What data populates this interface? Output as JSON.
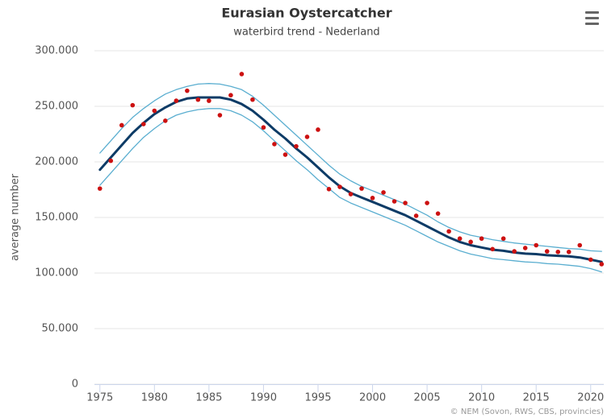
{
  "chart_data": {
    "type": "line",
    "title": "Eurasian Oystercatcher",
    "subtitle": "waterbird trend - Nederland",
    "y_label": "average number",
    "credits": "© NEM (Sovon, RWS, CBS, provincies)",
    "x": [
      1975,
      1976,
      1977,
      1978,
      1979,
      1980,
      1981,
      1982,
      1983,
      1984,
      1985,
      1986,
      1987,
      1988,
      1989,
      1990,
      1991,
      1992,
      1993,
      1994,
      1995,
      1996,
      1997,
      1998,
      1999,
      2000,
      2001,
      2002,
      2003,
      2004,
      2005,
      2006,
      2007,
      2008,
      2009,
      2010,
      2011,
      2012,
      2013,
      2014,
      2015,
      2016,
      2017,
      2018,
      2019,
      2020,
      2021
    ],
    "series": [
      {
        "type": "line",
        "color": "#5aaed0",
        "width": 1.3,
        "values": [
          208000,
          219000,
          230000,
          240000,
          248000,
          255000,
          261000,
          265000,
          268000,
          270000,
          270500,
          270000,
          268000,
          265000,
          259000,
          251000,
          242000,
          233000,
          224000,
          215000,
          206000,
          197000,
          189000,
          183000,
          178000,
          174000,
          170000,
          166000,
          162000,
          157000,
          152000,
          146000,
          141000,
          137000,
          134000,
          132000,
          130000,
          128500,
          127000,
          126000,
          125000,
          124000,
          123000,
          122000,
          121500,
          120000,
          119500
        ]
      },
      {
        "type": "line",
        "color": "#5aaed0",
        "width": 1.3,
        "values": [
          179000,
          190000,
          201000,
          212000,
          222000,
          230000,
          237000,
          242000,
          245000,
          247000,
          248000,
          248000,
          246000,
          242000,
          236000,
          228000,
          219000,
          210000,
          201000,
          193000,
          184000,
          176000,
          168000,
          163000,
          159000,
          155000,
          151000,
          147000,
          143000,
          138000,
          133000,
          128000,
          124000,
          120000,
          117000,
          115000,
          113000,
          112000,
          111000,
          110000,
          109500,
          108500,
          108000,
          107000,
          106000,
          104000,
          101000
        ]
      },
      {
        "type": "line",
        "color": "#0d3b66",
        "width": 3,
        "values": [
          193000,
          204000,
          215000,
          226000,
          235000,
          243000,
          249000,
          254000,
          257000,
          258000,
          258000,
          258000,
          256000,
          252000,
          246000,
          238000,
          229000,
          221000,
          212000,
          204000,
          195000,
          186000,
          178000,
          172000,
          168000,
          164000,
          160000,
          156000,
          152000,
          147000,
          142000,
          137000,
          132000,
          128000,
          125000,
          123000,
          121000,
          120000,
          118500,
          117500,
          117000,
          116000,
          115500,
          115000,
          114000,
          112000,
          110000
        ]
      },
      {
        "type": "scatter",
        "color": "#cc1111",
        "values": [
          176000,
          201000,
          233000,
          251000,
          234000,
          246000,
          237000,
          255000,
          264000,
          256000,
          255000,
          242000,
          260000,
          279000,
          256000,
          231000,
          216000,
          206500,
          214000,
          222500,
          229000,
          175500,
          177500,
          171000,
          176000,
          167500,
          172500,
          164500,
          163000,
          151500,
          163000,
          153500,
          137500,
          131000,
          128000,
          131000,
          121500,
          131000,
          119500,
          122500,
          125000,
          119500,
          119000,
          119000,
          125000,
          112000,
          108000
        ]
      }
    ],
    "xlim": [
      1974.5,
      2021.2
    ],
    "ylim": [
      0,
      300000
    ],
    "xticks": [
      1975,
      1980,
      1985,
      1990,
      1995,
      2000,
      2005,
      2010,
      2015,
      2020
    ],
    "yticks": [
      0,
      {
        "value": 50000,
        "label": "50.000"
      },
      {
        "value": 100000,
        "label": "100.000"
      },
      {
        "value": 150000,
        "label": "150.000"
      },
      {
        "value": 200000,
        "label": "200.000"
      },
      {
        "value": 250000,
        "label": "250.000"
      },
      {
        "value": 300000,
        "label": "300.000"
      }
    ],
    "grid": true
  }
}
